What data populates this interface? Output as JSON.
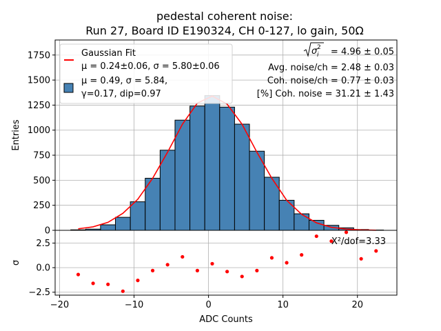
{
  "figure": {
    "title_line1": "pedestal coherent noise:",
    "title_line2": "Run 27, Board ID E190324, CH 0-127, lo gain, 50Ω"
  },
  "chart_data": [
    {
      "type": "bar",
      "role": "histogram-with-fit",
      "ylabel": "Entries",
      "ylim": [
        0,
        1900
      ],
      "yticks": [
        0,
        250,
        500,
        750,
        1000,
        1250,
        1500,
        1750
      ],
      "xlim": [
        -20.6,
        25.3
      ],
      "grid": true,
      "legend_position": "top-left",
      "bin_edges": [
        -18.5,
        -16.5,
        -14.5,
        -12.5,
        -10.5,
        -8.5,
        -6.5,
        -4.5,
        -2.5,
        -0.5,
        1.5,
        3.5,
        5.5,
        7.5,
        9.5,
        11.5,
        13.5,
        15.5,
        17.5,
        19.5,
        21.5,
        23.5
      ],
      "values": [
        5,
        12,
        55,
        130,
        285,
        520,
        800,
        1100,
        1240,
        1345,
        1230,
        1060,
        790,
        530,
        300,
        165,
        100,
        50,
        25,
        8,
        3
      ],
      "bar_color": "#4682b4",
      "series": [
        {
          "name": "Gaussian Fit",
          "name_line2": "μ = 0.24±0.06, σ = 5.80±0.06",
          "color": "#ff0000",
          "x": [
            -17.5,
            -15.5,
            -13.5,
            -11.5,
            -9.5,
            -7.5,
            -5.5,
            -3.5,
            -1.5,
            0.5,
            2.5,
            4.5,
            6.5,
            8.5,
            10.5,
            12.5,
            14.5,
            16.5,
            18.5,
            20.5,
            22.5
          ],
          "y": [
            15,
            35,
            80,
            170,
            310,
            520,
            780,
            1060,
            1270,
            1340,
            1260,
            1060,
            780,
            520,
            300,
            160,
            75,
            30,
            12,
            4,
            1
          ]
        },
        {
          "name": "μ = 0.49, σ = 5.84,",
          "name_line2": "γ=0.17, dip=0.97",
          "color": "#4682b4"
        }
      ],
      "annotations": {
        "sigma_value": "= 4.96 ± 0.05",
        "avg_noise": "Avg. noise/ch = 2.48 ± 0.03",
        "coh_noise": "Coh. noise/ch = 0.77 ± 0.03",
        "coh_pct": "[%] Coh. noise = 31.21  ± 1.43"
      }
    },
    {
      "type": "scatter",
      "role": "residuals",
      "xlabel": "ADC Counts",
      "ylabel": "σ",
      "xlim": [
        -20.6,
        25.3
      ],
      "ylim": [
        -2.8,
        3.8
      ],
      "xticks": [
        -20,
        -10,
        0,
        10,
        20
      ],
      "yticks": [
        -2.5,
        0.0,
        2.5
      ],
      "grid": true,
      "annotation": "X²/dof=3.33",
      "series": [
        {
          "color": "#ff0000",
          "x": [
            -17.5,
            -15.5,
            -13.5,
            -11.5,
            -9.5,
            -7.5,
            -5.5,
            -3.5,
            -1.5,
            0.5,
            2.5,
            4.5,
            6.5,
            8.5,
            10.5,
            12.5,
            14.5,
            16.5,
            18.5,
            20.5,
            22.5
          ],
          "y": [
            -0.7,
            -1.6,
            -1.7,
            -2.4,
            -1.3,
            -0.3,
            0.3,
            1.1,
            -0.3,
            0.4,
            -0.4,
            -0.9,
            -0.3,
            1.0,
            0.5,
            1.3,
            3.2,
            2.7,
            3.6,
            0.9,
            1.7
          ]
        }
      ]
    }
  ]
}
